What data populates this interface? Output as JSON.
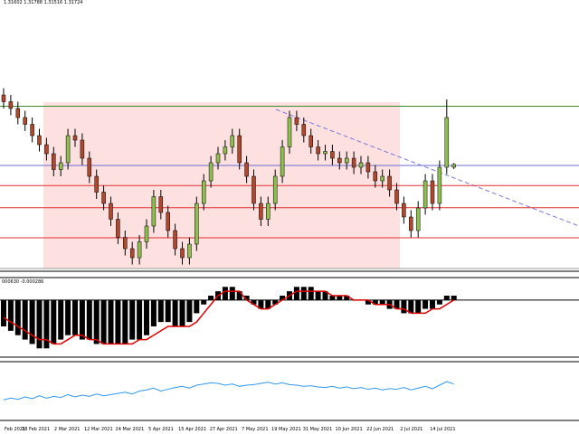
{
  "chart_data": {
    "type": "candlestick",
    "header_label": "1.31602 1.31788 1.31516 1.31724",
    "ylim": [
      1.27,
      1.352
    ],
    "up_color": "#8fbf4f",
    "down_color": "#b0482e",
    "ohlc": [
      [
        1.348,
        1.351,
        1.342,
        1.345
      ],
      [
        1.345,
        1.348,
        1.339,
        1.342
      ],
      [
        1.342,
        1.345,
        1.335,
        1.338
      ],
      [
        1.338,
        1.341,
        1.332,
        1.335
      ],
      [
        1.335,
        1.338,
        1.327,
        1.33
      ],
      [
        1.33,
        1.333,
        1.323,
        1.326
      ],
      [
        1.326,
        1.329,
        1.319,
        1.322
      ],
      [
        1.322,
        1.325,
        1.312,
        1.315
      ],
      [
        1.315,
        1.321,
        1.312,
        1.318
      ],
      [
        1.318,
        1.333,
        1.315,
        1.33
      ],
      [
        1.33,
        1.333,
        1.325,
        1.328
      ],
      [
        1.328,
        1.331,
        1.317,
        1.32
      ],
      [
        1.32,
        1.323,
        1.309,
        1.312
      ],
      [
        1.312,
        1.315,
        1.302,
        1.305
      ],
      [
        1.305,
        1.308,
        1.297,
        1.3
      ],
      [
        1.3,
        1.303,
        1.29,
        1.293
      ],
      [
        1.293,
        1.296,
        1.282,
        1.285
      ],
      [
        1.285,
        1.288,
        1.277,
        1.28
      ],
      [
        1.28,
        1.283,
        1.273,
        1.276
      ],
      [
        1.276,
        1.286,
        1.273,
        1.283
      ],
      [
        1.283,
        1.293,
        1.28,
        1.29
      ],
      [
        1.29,
        1.306,
        1.287,
        1.303
      ],
      [
        1.303,
        1.306,
        1.293,
        1.296
      ],
      [
        1.296,
        1.299,
        1.285,
        1.288
      ],
      [
        1.288,
        1.291,
        1.277,
        1.28
      ],
      [
        1.28,
        1.283,
        1.273,
        1.276
      ],
      [
        1.276,
        1.285,
        1.273,
        1.282
      ],
      [
        1.282,
        1.303,
        1.279,
        1.3
      ],
      [
        1.3,
        1.313,
        1.297,
        1.31
      ],
      [
        1.31,
        1.321,
        1.307,
        1.318
      ],
      [
        1.318,
        1.325,
        1.315,
        1.322
      ],
      [
        1.322,
        1.328,
        1.319,
        1.325
      ],
      [
        1.325,
        1.333,
        1.322,
        1.33
      ],
      [
        1.33,
        1.333,
        1.315,
        1.318
      ],
      [
        1.318,
        1.321,
        1.309,
        1.312
      ],
      [
        1.312,
        1.315,
        1.297,
        1.3
      ],
      [
        1.3,
        1.303,
        1.29,
        1.293
      ],
      [
        1.293,
        1.303,
        1.29,
        1.3
      ],
      [
        1.3,
        1.315,
        1.297,
        1.312
      ],
      [
        1.312,
        1.328,
        1.309,
        1.325
      ],
      [
        1.325,
        1.341,
        1.322,
        1.338
      ],
      [
        1.338,
        1.341,
        1.332,
        1.335
      ],
      [
        1.335,
        1.338,
        1.327,
        1.33
      ],
      [
        1.33,
        1.333,
        1.322,
        1.325
      ],
      [
        1.325,
        1.328,
        1.319,
        1.322
      ],
      [
        1.322,
        1.326,
        1.319,
        1.323
      ],
      [
        1.323,
        1.326,
        1.317,
        1.32
      ],
      [
        1.32,
        1.323,
        1.315,
        1.318
      ],
      [
        1.318,
        1.323,
        1.315,
        1.32
      ],
      [
        1.32,
        1.323,
        1.313,
        1.316
      ],
      [
        1.316,
        1.321,
        1.313,
        1.318
      ],
      [
        1.318,
        1.321,
        1.311,
        1.314
      ],
      [
        1.314,
        1.317,
        1.307,
        1.31
      ],
      [
        1.31,
        1.315,
        1.307,
        1.312
      ],
      [
        1.312,
        1.315,
        1.303,
        1.306
      ],
      [
        1.306,
        1.309,
        1.297,
        1.3
      ],
      [
        1.3,
        1.303,
        1.291,
        1.294
      ],
      [
        1.294,
        1.297,
        1.285,
        1.288
      ],
      [
        1.288,
        1.301,
        1.285,
        1.298
      ],
      [
        1.298,
        1.313,
        1.295,
        1.31
      ],
      [
        1.31,
        1.313,
        1.297,
        1.3
      ],
      [
        1.3,
        1.319,
        1.297,
        1.316
      ],
      [
        1.316,
        1.346,
        1.313,
        1.338
      ],
      [
        1.31602,
        1.31788,
        1.31516,
        1.31724
      ]
    ],
    "levels": [
      {
        "value": 1.343,
        "color": "#3c8c28"
      },
      {
        "value": 1.3168,
        "color": "#6b6bd6"
      },
      {
        "value": 1.3079,
        "color": "#e03030"
      },
      {
        "value": 1.2981,
        "color": "#e03030"
      },
      {
        "value": 1.2848,
        "color": "#e03030"
      },
      {
        "value": 1.2712,
        "color": "#999999"
      }
    ],
    "x_labels": [
      "Feb 2021",
      "18 Feb 2021",
      "2 Mar 2021",
      "12 Mar 2021",
      "24 Mar 2021",
      "5 Apr 2021",
      "15 Apr 2021",
      "27 Apr 2021",
      "7 May 2021",
      "19 May 2021",
      "31 May 2021",
      "10 Jun 2021",
      "22 Jun 2021",
      "2 Jul 2021",
      "14 Jul 2021"
    ],
    "macd": {
      "label": "000630 -0.000286",
      "ylim": [
        -0.013,
        0.0045
      ],
      "signal_color": "#e00000",
      "histogram": [
        -0.006,
        -0.007,
        -0.008,
        -0.009,
        -0.01,
        -0.011,
        -0.011,
        -0.01,
        -0.009,
        -0.008,
        -0.008,
        -0.009,
        -0.009,
        -0.01,
        -0.01,
        -0.01,
        -0.01,
        -0.01,
        -0.009,
        -0.009,
        -0.008,
        -0.006,
        -0.005,
        -0.005,
        -0.006,
        -0.006,
        -0.005,
        -0.003,
        -0.001,
        0.001,
        0.002,
        0.003,
        0.003,
        0.002,
        0.001,
        -0.001,
        -0.002,
        -0.002,
        -0.001,
        0.001,
        0.002,
        0.003,
        0.003,
        0.003,
        0.002,
        0.002,
        0.001,
        0.001,
        0.001,
        0.0,
        0.0,
        -0.001,
        -0.001,
        -0.001,
        -0.002,
        -0.002,
        -0.003,
        -0.003,
        -0.003,
        -0.002,
        -0.002,
        -0.001,
        0.001,
        0.001
      ],
      "signal": [
        -0.004,
        -0.005,
        -0.006,
        -0.007,
        -0.008,
        -0.009,
        -0.009,
        -0.01,
        -0.01,
        -0.009,
        -0.008,
        -0.008,
        -0.009,
        -0.009,
        -0.01,
        -0.01,
        -0.01,
        -0.01,
        -0.01,
        -0.009,
        -0.009,
        -0.008,
        -0.007,
        -0.006,
        -0.006,
        -0.006,
        -0.006,
        -0.005,
        -0.003,
        -0.001,
        0.001,
        0.002,
        0.002,
        0.002,
        0.0,
        -0.001,
        -0.002,
        -0.002,
        -0.001,
        0.0,
        0.001,
        0.002,
        0.002,
        0.002,
        0.002,
        0.002,
        0.001,
        0.001,
        0.001,
        0.0,
        0.0,
        0.0,
        -0.001,
        -0.001,
        -0.001,
        -0.002,
        -0.002,
        -0.003,
        -0.003,
        -0.003,
        -0.002,
        -0.002,
        -0.001,
        0.0
      ]
    },
    "oscillator": {
      "ylim": [
        0,
        100
      ],
      "color": "#3399ee",
      "values": [
        35,
        38,
        36,
        40,
        37,
        42,
        38,
        41,
        39,
        44,
        40,
        43,
        41,
        45,
        42,
        44,
        46,
        48,
        45,
        50,
        52,
        55,
        50,
        53,
        56,
        58,
        55,
        60,
        62,
        64,
        63,
        60,
        62,
        58,
        60,
        61,
        63,
        65,
        62,
        64,
        61,
        60,
        58,
        59,
        57,
        56,
        58,
        55,
        57,
        54,
        56,
        53,
        55,
        52,
        54,
        53,
        56,
        52,
        55,
        58,
        54,
        60,
        66,
        62
      ]
    }
  }
}
